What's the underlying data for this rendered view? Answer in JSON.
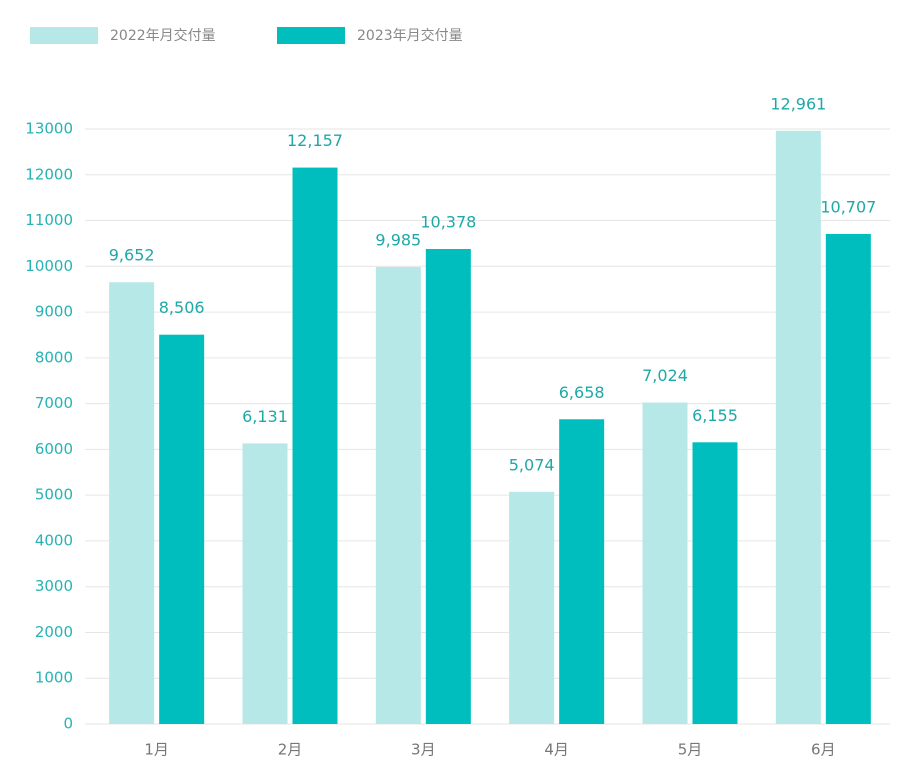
{
  "chart_data": {
    "type": "bar",
    "categories": [
      "1月",
      "2月",
      "3月",
      "4月",
      "5月",
      "6月"
    ],
    "series": [
      {
        "name": "2022年月交付量",
        "color": "#b6e8e8",
        "values": [
          9652,
          6131,
          9985,
          5074,
          7024,
          12961
        ],
        "value_labels": [
          "9,652",
          "6,131",
          "9,985",
          "5,074",
          "7,024",
          "12,961"
        ]
      },
      {
        "name": "2023年月交付量",
        "color": "#00bebe",
        "values": [
          8506,
          12157,
          10378,
          6658,
          6155,
          10707
        ],
        "value_labels": [
          "8,506",
          "12,157",
          "10,378",
          "6,658",
          "6,155",
          "10,707"
        ]
      }
    ],
    "ylim": [
      0,
      13000
    ],
    "yticks": [
      0,
      1000,
      2000,
      3000,
      4000,
      5000,
      6000,
      7000,
      8000,
      9000,
      10000,
      11000,
      12000,
      13000
    ],
    "grid": true,
    "legend": "top-left"
  }
}
